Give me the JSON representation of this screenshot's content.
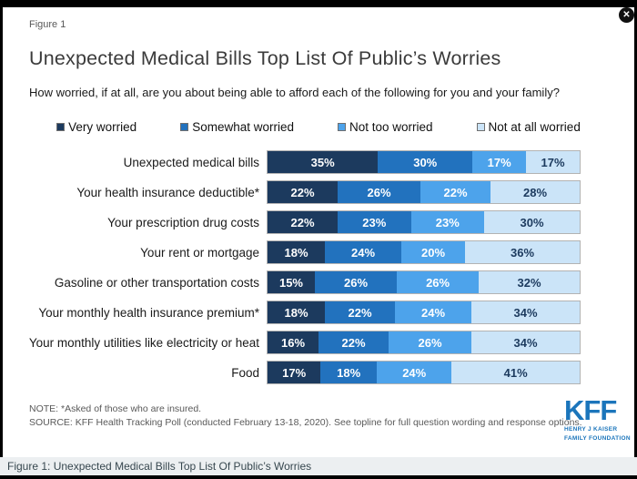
{
  "window": {
    "close_icon": "✕"
  },
  "header": {
    "figure_label": "Figure 1",
    "title": "Unexpected Medical Bills Top List Of Public’s Worries",
    "subtitle": "How worried, if at all, are you about being able to afford each of the following for you and your family?"
  },
  "legend": {
    "items": [
      {
        "label": "Very worried",
        "color": "#1C3A5E"
      },
      {
        "label": "Somewhat worried",
        "color": "#2272BE"
      },
      {
        "label": "Not too worried",
        "color": "#4DA3EB"
      },
      {
        "label": "Not at all worried",
        "color": "#CBE4F8"
      }
    ]
  },
  "chart_data": {
    "type": "bar",
    "orientation": "horizontal",
    "stacked": true,
    "xlim": [
      0,
      100
    ],
    "value_suffix": "%",
    "categories": [
      "Unexpected medical bills",
      "Your health insurance deductible*",
      "Your prescription drug costs",
      "Your rent or mortgage",
      "Gasoline or other transportation costs",
      "Your monthly health insurance premium*",
      "Your monthly utilities like electricity or heat",
      "Food"
    ],
    "series": [
      {
        "name": "Very worried",
        "color": "#1C3A5E",
        "text_color": "#FFFFFF",
        "values": [
          35,
          22,
          22,
          18,
          15,
          18,
          16,
          17
        ]
      },
      {
        "name": "Somewhat worried",
        "color": "#2272BE",
        "text_color": "#FFFFFF",
        "values": [
          30,
          26,
          23,
          24,
          26,
          22,
          22,
          18
        ]
      },
      {
        "name": "Not too worried",
        "color": "#4DA3EB",
        "text_color": "#FFFFFF",
        "values": [
          17,
          22,
          23,
          20,
          26,
          24,
          26,
          24
        ]
      },
      {
        "name": "Not at all worried",
        "color": "#CBE4F8",
        "text_color": "#1C3A5E",
        "values": [
          17,
          28,
          30,
          36,
          32,
          34,
          34,
          41
        ]
      }
    ]
  },
  "footer": {
    "note": "NOTE: *Asked of those who are insured.",
    "source": "SOURCE: KFF Health Tracking Poll (conducted February 13-18, 2020). See topline for full question wording and response options."
  },
  "logo": {
    "kff": "KFF",
    "line1": "HENRY J KAISER",
    "line2": "FAMILY FOUNDATION",
    "color": "#1B75BB"
  },
  "caption_bar": {
    "text": "Figure 1: Unexpected Medical Bills Top List Of Public’s Worries"
  }
}
